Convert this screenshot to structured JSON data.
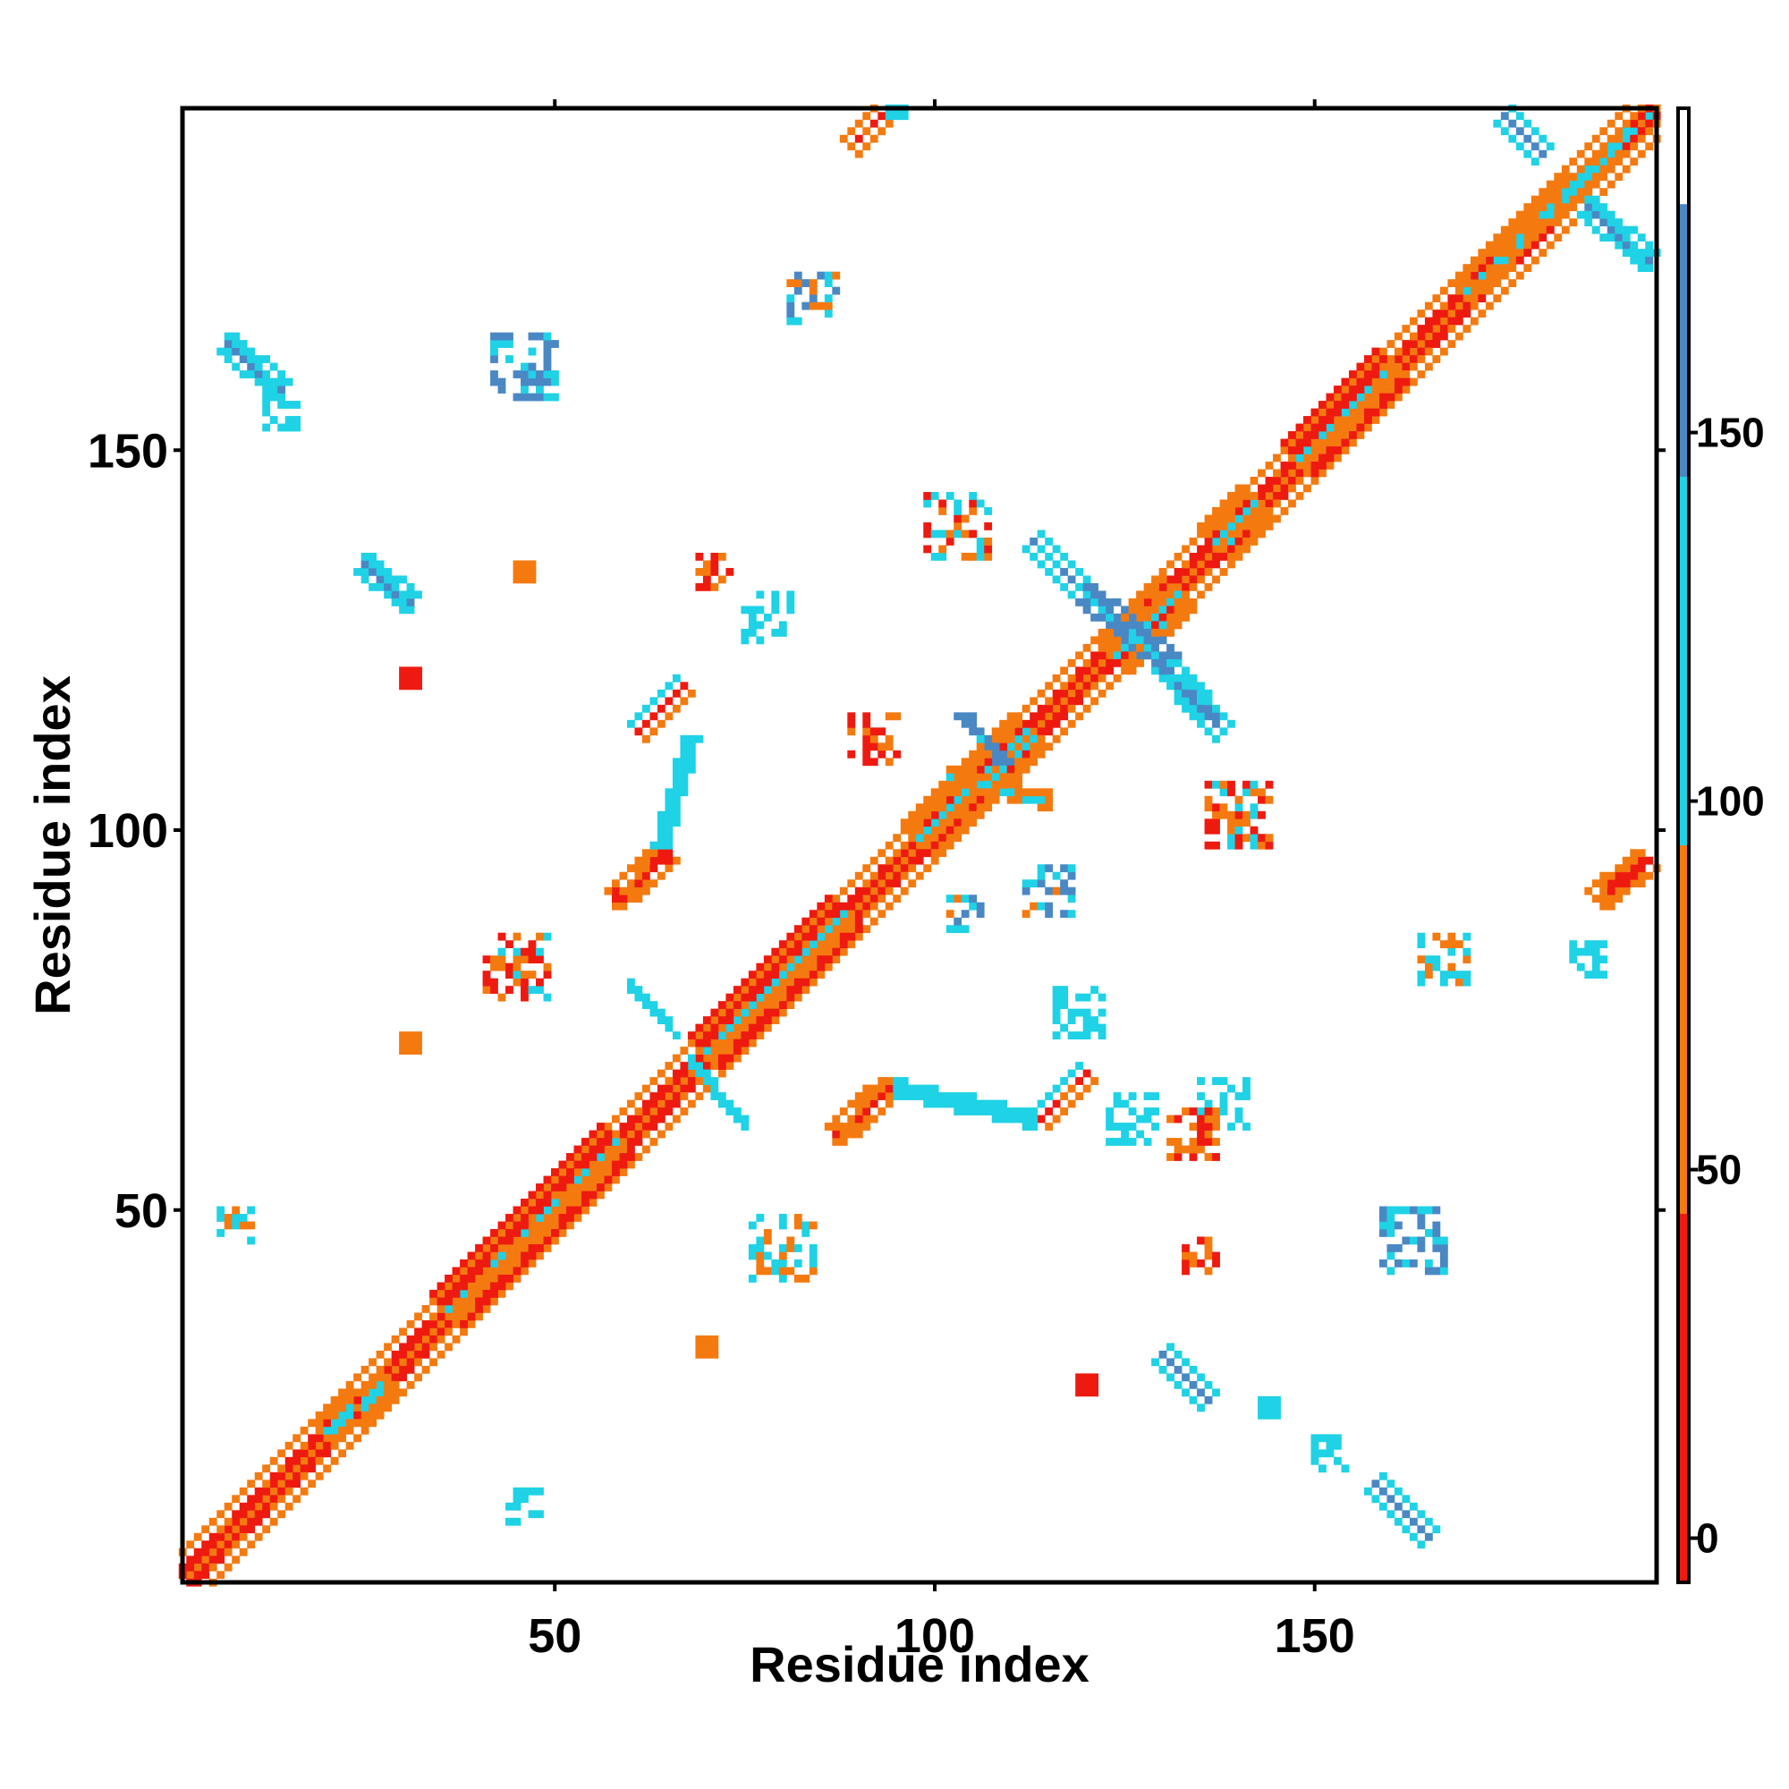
{
  "chart_data": {
    "type": "heatmap",
    "title": "",
    "xlabel": "Residue index",
    "ylabel": "Residue index",
    "xlim": [
      1,
      195
    ],
    "ylim": [
      1,
      195
    ],
    "x_ticks": [
      50,
      100,
      150
    ],
    "y_ticks": [
      50,
      100,
      150
    ],
    "colorbar": {
      "ticks": [
        0,
        50,
        100,
        150
      ],
      "range": [
        -6,
        194
      ],
      "bins": [
        {
          "from": -6,
          "to": 44,
          "color": "#ee1a10"
        },
        {
          "from": 44,
          "to": 94,
          "color": "#f47a10"
        },
        {
          "from": 94,
          "to": 144,
          "color": "#1fd2e6"
        },
        {
          "from": 144,
          "to": 181,
          "color": "#4a88c4"
        },
        {
          "from": 181,
          "to": 194,
          "color": "#ffffff"
        }
      ]
    },
    "grid": false,
    "note_values": "matrix is symmetric; diagonal band colored by sequence separation; off-diagonal contact patches",
    "segments": [
      {
        "from": [
          1,
          1
        ],
        "to": [
          195,
          195
        ],
        "width": 1.0,
        "colors": [
          "#ffffff"
        ]
      },
      {
        "from": [
          2,
          1
        ],
        "to": [
          195,
          194
        ],
        "width": 1.0,
        "colors": [
          "#f47a10",
          "#ee1a10"
        ]
      },
      {
        "from": [
          1,
          2
        ],
        "to": [
          194,
          195
        ],
        "width": 1.0,
        "colors": [
          "#f47a10",
          "#ee1a10"
        ]
      },
      {
        "from": [
          3,
          1
        ],
        "to": [
          195,
          193
        ],
        "width": 1.5,
        "colors": [
          "#ee1a10",
          "#f47a10"
        ]
      },
      {
        "from": [
          1,
          3
        ],
        "to": [
          193,
          195
        ],
        "width": 1.5,
        "colors": [
          "#ee1a10",
          "#f47a10"
        ]
      },
      {
        "from": [
          20,
          21
        ],
        "to": [
          28,
          27
        ],
        "width": 4,
        "colors": [
          "#1fd2e6",
          "#f47a10"
        ]
      },
      {
        "from": [
          36,
          37
        ],
        "to": [
          58,
          59
        ],
        "width": 5,
        "colors": [
          "#1fd2e6",
          "#f47a10",
          "#ee1a10"
        ]
      },
      {
        "from": [
          70,
          71
        ],
        "to": [
          88,
          89
        ],
        "width": 6,
        "colors": [
          "#1fd2e6",
          "#f47a10",
          "#ee1a10"
        ]
      },
      {
        "from": [
          98,
          99
        ],
        "to": [
          112,
          113
        ],
        "width": 5,
        "colors": [
          "#1fd2e6",
          "#f47a10"
        ]
      },
      {
        "from": [
          124,
          123
        ],
        "to": [
          132,
          131
        ],
        "width": 5,
        "colors": [
          "#1fd2e6",
          "#f47a10"
        ]
      },
      {
        "from": [
          137,
          138
        ],
        "to": [
          142,
          143
        ],
        "width": 5,
        "colors": [
          "#1fd2e6",
          "#f47a10"
        ]
      },
      {
        "from": [
          148,
          149
        ],
        "to": [
          160,
          161
        ],
        "width": 6,
        "colors": [
          "#1fd2e6",
          "#f47a10",
          "#ee1a10"
        ]
      },
      {
        "from": [
          170,
          171
        ],
        "to": [
          195,
          195
        ],
        "width": 3,
        "colors": [
          "#1fd2e6",
          "#f47a10"
        ]
      },
      {
        "from": [
          7,
          164
        ],
        "to": [
          14,
          158
        ],
        "width": 2.5,
        "colors": [
          "#4a88c4",
          "#1fd2e6"
        ]
      },
      {
        "from": [
          158,
          14
        ],
        "to": [
          165,
          7
        ],
        "width": 2.5,
        "colors": [
          "#4a88c4",
          "#1fd2e6"
        ]
      },
      {
        "from": [
          25,
          135
        ],
        "to": [
          31,
          130
        ],
        "width": 2.5,
        "colors": [
          "#4a88c4",
          "#1fd2e6"
        ]
      },
      {
        "from": [
          130,
          31
        ],
        "to": [
          136,
          25
        ],
        "width": 2.5,
        "colors": [
          "#4a88c4",
          "#1fd2e6"
        ]
      },
      {
        "from": [
          175,
          194
        ],
        "to": [
          180,
          189
        ],
        "width": 2.5,
        "colors": [
          "#4a88c4",
          "#1fd2e6"
        ]
      },
      {
        "from": [
          186,
          182
        ],
        "to": [
          194,
          175
        ],
        "width": 2.5,
        "colors": [
          "#4a88c4",
          "#1fd2e6"
        ]
      },
      {
        "from": [
          113,
          138
        ],
        "to": [
          120,
          131
        ],
        "width": 3,
        "colors": [
          "#4a88c4",
          "#1fd2e6"
        ]
      },
      {
        "from": [
          130,
          122
        ],
        "to": [
          138,
          113
        ],
        "width": 3,
        "colors": [
          "#4a88c4",
          "#1fd2e6"
        ]
      },
      {
        "from": [
          120,
          131
        ],
        "to": [
          131,
          122
        ],
        "width": 2.5,
        "colors": [
          "#1fd2e6",
          "#4a88c4"
        ]
      },
      {
        "from": [
          89,
          190
        ],
        "to": [
          94,
          195
        ],
        "width": 3,
        "colors": [
          "#ee1a10",
          "#f47a10"
        ]
      },
      {
        "from": [
          187,
          91
        ],
        "to": [
          194,
          96
        ],
        "width": 3,
        "colors": [
          "#ee1a10",
          "#f47a10"
        ]
      },
      {
        "from": [
          61,
          113
        ],
        "to": [
          67,
          119
        ],
        "width": 3.5,
        "colors": [
          "#ee1a10",
          "#f47a10",
          "#1fd2e6"
        ]
      },
      {
        "from": [
          58,
          91
        ],
        "to": [
          65,
          97
        ],
        "width": 3.5,
        "colors": [
          "#ee1a10",
          "#f47a10"
        ]
      },
      {
        "from": [
          87,
          60
        ],
        "to": [
          94,
          66
        ],
        "width": 3.5,
        "colors": [
          "#ee1a10",
          "#f47a10"
        ]
      },
      {
        "from": [
          114,
          62
        ],
        "to": [
          120,
          68
        ],
        "width": 3.5,
        "colors": [
          "#ee1a10",
          "#f47a10",
          "#1fd2e6"
        ]
      },
      {
        "from": [
          95,
          66
        ],
        "to": [
          113,
          62
        ],
        "width": 1.5,
        "colors": [
          "#1fd2e6"
        ]
      },
      {
        "from": [
          64,
          98
        ],
        "to": [
          68,
          112
        ],
        "width": 1.5,
        "colors": [
          "#1fd2e6"
        ]
      },
      {
        "from": [
          68,
          70
        ],
        "to": [
          75,
          61
        ],
        "width": 1.2,
        "colors": [
          "#1fd2e6"
        ]
      },
      {
        "from": [
          60,
          80
        ],
        "to": [
          66,
          73
        ],
        "width": 1.2,
        "colors": [
          "#1fd2e6"
        ]
      },
      {
        "from": [
          102,
          107
        ],
        "to": [
          115,
          104
        ],
        "width": 1.5,
        "colors": [
          "#1fd2e6",
          "#f47a10"
        ]
      },
      {
        "from": [
          104,
          115
        ],
        "to": [
          109,
          109
        ],
        "width": 1.5,
        "colors": [
          "#1fd2e6",
          "#4a88c4"
        ]
      }
    ],
    "clusters": [
      {
        "x": 46,
        "y": 161,
        "r": 4,
        "colors": [
          "#1fd2e6",
          "#4a88c4"
        ]
      },
      {
        "x": 84,
        "y": 170,
        "r": 3,
        "colors": [
          "#1fd2e6",
          "#f47a10",
          "#4a88c4"
        ]
      },
      {
        "x": 163,
        "y": 46,
        "r": 4,
        "colors": [
          "#1fd2e6",
          "#4a88c4"
        ]
      },
      {
        "x": 167,
        "y": 83,
        "r": 3,
        "colors": [
          "#1fd2e6",
          "#f47a10"
        ]
      },
      {
        "x": 45,
        "y": 82,
        "r": 4,
        "colors": [
          "#f47a10",
          "#ee1a10",
          "#1fd2e6"
        ]
      },
      {
        "x": 80,
        "y": 45,
        "r": 4,
        "colors": [
          "#f47a10",
          "#1fd2e6"
        ]
      },
      {
        "x": 103,
        "y": 140,
        "r": 4,
        "colors": [
          "#1fd2e6",
          "#f47a10",
          "#ee1a10"
        ]
      },
      {
        "x": 140,
        "y": 102,
        "r": 4,
        "colors": [
          "#1fd2e6",
          "#f47a10",
          "#ee1a10"
        ]
      },
      {
        "x": 119,
        "y": 76,
        "r": 3,
        "colors": [
          "#1fd2e6"
        ]
      },
      {
        "x": 138,
        "y": 64,
        "r": 3,
        "colors": [
          "#1fd2e6"
        ]
      },
      {
        "x": 126,
        "y": 62,
        "r": 3,
        "colors": [
          "#1fd2e6"
        ]
      },
      {
        "x": 78,
        "y": 128,
        "r": 3,
        "colors": [
          "#1fd2e6"
        ]
      },
      {
        "x": 115,
        "y": 92,
        "r": 3,
        "colors": [
          "#1fd2e6",
          "#4a88c4",
          "#f47a10"
        ]
      },
      {
        "x": 92,
        "y": 112,
        "r": 3,
        "colors": [
          "#f47a10",
          "#ee1a10"
        ]
      },
      {
        "x": 186,
        "y": 83,
        "r": 2,
        "colors": [
          "#1fd2e6"
        ]
      },
      {
        "x": 8,
        "y": 48,
        "r": 2,
        "colors": [
          "#1fd2e6",
          "#f47a10"
        ]
      },
      {
        "x": 46,
        "y": 11,
        "r": 2,
        "colors": [
          "#1fd2e6"
        ]
      },
      {
        "x": 152,
        "y": 18,
        "r": 2,
        "colors": [
          "#1fd2e6"
        ]
      },
      {
        "x": 14,
        "y": 155,
        "r": 2,
        "colors": [
          "#1fd2e6"
        ]
      },
      {
        "x": 71,
        "y": 134,
        "r": 2,
        "colors": [
          "#ee1a10",
          "#f47a10"
        ]
      },
      {
        "x": 134,
        "y": 60,
        "r": 3,
        "colors": [
          "#ee1a10",
          "#f47a10"
        ]
      },
      {
        "x": 46,
        "y": 134,
        "r": 1,
        "colors": [
          "#f47a10"
        ]
      },
      {
        "x": 31,
        "y": 120,
        "r": 1,
        "colors": [
          "#ee1a10"
        ]
      },
      {
        "x": 31,
        "y": 72,
        "r": 1,
        "colors": [
          "#f47a10"
        ]
      },
      {
        "x": 70,
        "y": 32,
        "r": 1,
        "colors": [
          "#f47a10"
        ]
      },
      {
        "x": 120,
        "y": 27,
        "r": 1,
        "colors": [
          "#ee1a10"
        ]
      },
      {
        "x": 144,
        "y": 24,
        "r": 1,
        "colors": [
          "#1fd2e6"
        ]
      },
      {
        "x": 135,
        "y": 44,
        "r": 2,
        "colors": [
          "#f47a10",
          "#ee1a10"
        ]
      },
      {
        "x": 104,
        "y": 89,
        "r": 2,
        "colors": [
          "#1fd2e6",
          "#f47a10",
          "#4a88c4"
        ]
      },
      {
        "x": 95,
        "y": 195,
        "r": 1,
        "colors": [
          "#1fd2e6"
        ]
      }
    ]
  }
}
